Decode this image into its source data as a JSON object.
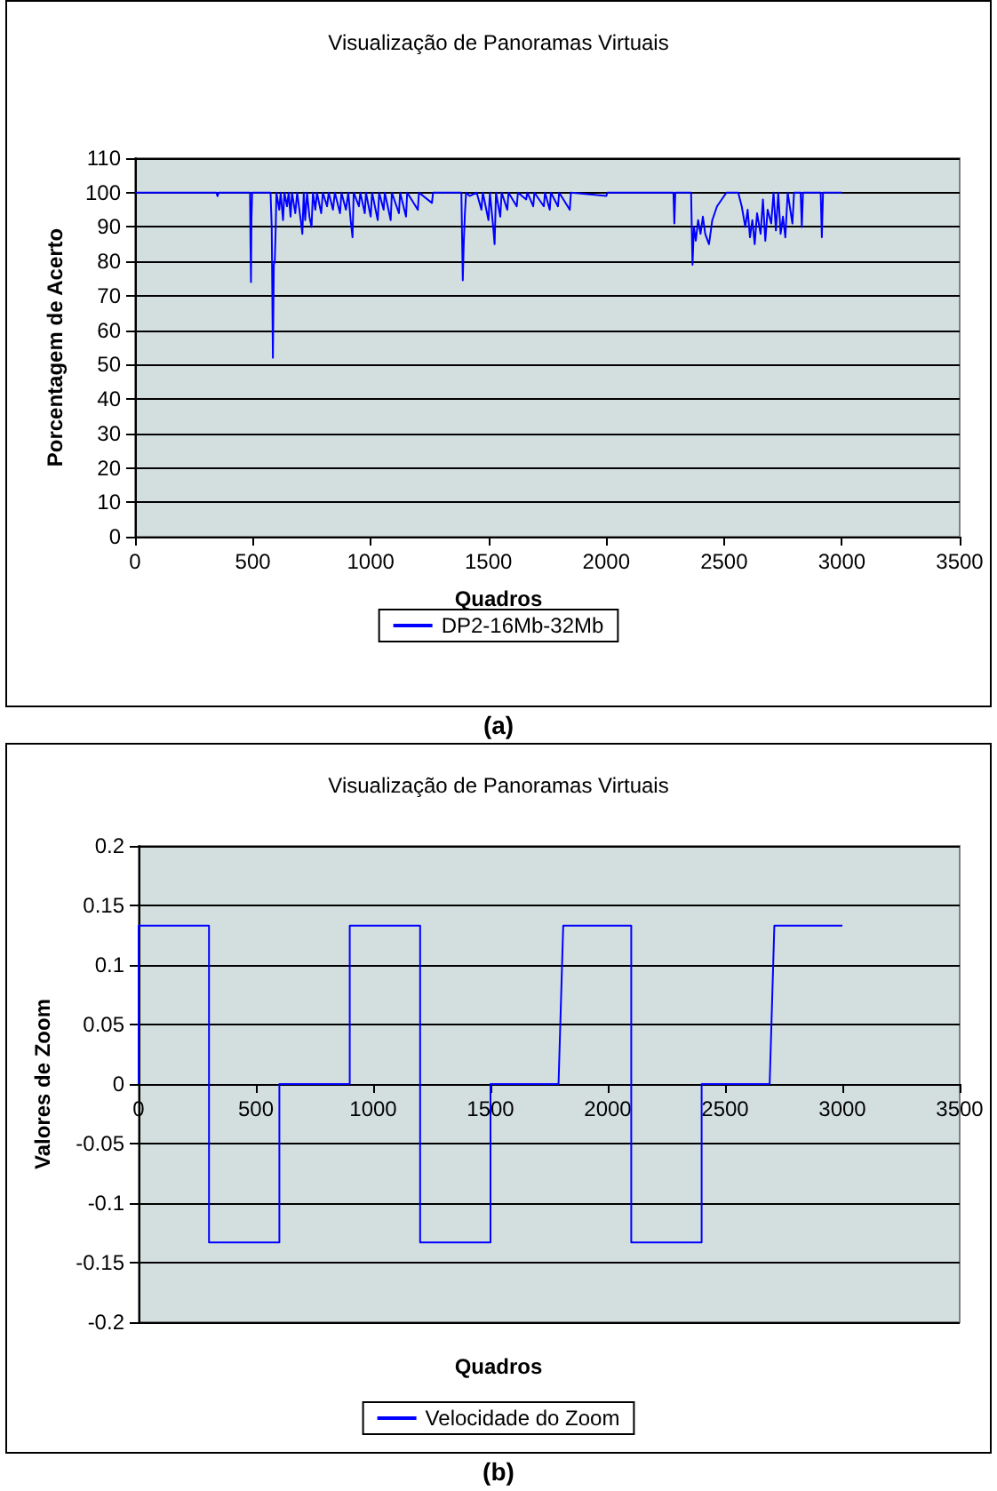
{
  "chart_data": [
    {
      "type": "line",
      "title": "Visualização de Panoramas Virtuais",
      "xlabel": "Quadros",
      "ylabel": "Porcentagem de Acerto",
      "xlim": [
        0,
        3500
      ],
      "xticks": [
        0,
        500,
        1000,
        1500,
        2000,
        2500,
        3000,
        3500
      ],
      "ylim": [
        0,
        110
      ],
      "yticks": [
        0,
        10,
        20,
        30,
        40,
        50,
        60,
        70,
        80,
        90,
        100,
        110
      ],
      "grid": "y",
      "legend": "bottom",
      "annotations": [
        "(a)"
      ],
      "series": [
        {
          "name": "DP2-16Mb-32Mb",
          "color": "#0000ff",
          "x": [
            0,
            345,
            350,
            355,
            488,
            490,
            492,
            494,
            497,
            575,
            580,
            585,
            589,
            593,
            597,
            600,
            612,
            618,
            628,
            634,
            645,
            652,
            660,
            666,
            680,
            688,
            705,
            710,
            716,
            722,
            730,
            740,
            749,
            755,
            765,
            772,
            790,
            797,
            815,
            822,
            840,
            848,
            870,
            876,
            895,
            905,
            915,
            923,
            928,
            950,
            956,
            975,
            980,
            1000,
            1006,
            1030,
            1036,
            1055,
            1060,
            1085,
            1090,
            1120,
            1125,
            1150,
            1155,
            1200,
            1205,
            1260,
            1265,
            1385,
            1388,
            1391,
            1395,
            1400,
            1405,
            1420,
            1450,
            1470,
            1476,
            1500,
            1506,
            1520,
            1526,
            1532,
            1550,
            1556,
            1580,
            1585,
            1620,
            1625,
            1660,
            1665,
            1690,
            1695,
            1735,
            1740,
            1760,
            1765,
            1795,
            1800,
            1845,
            1850,
            2000,
            2005,
            2285,
            2289,
            2293,
            2360,
            2366,
            2372,
            2380,
            2390,
            2400,
            2410,
            2420,
            2436,
            2450,
            2470,
            2490,
            2510,
            2560,
            2575,
            2590,
            2600,
            2610,
            2620,
            2630,
            2640,
            2655,
            2665,
            2675,
            2685,
            2700,
            2710,
            2720,
            2730,
            2740,
            2750,
            2760,
            2770,
            2790,
            2797,
            2825,
            2830,
            2835,
            2910,
            2915,
            2920,
            3000
          ],
          "values": [
            100,
            100,
            99,
            100,
            100,
            85,
            74,
            92,
            100,
            100,
            90,
            52,
            79,
            80,
            90,
            100,
            95,
            100,
            92,
            100,
            96,
            100,
            93,
            100,
            94,
            100,
            91,
            88,
            100,
            92,
            100,
            93,
            90,
            100,
            95,
            100,
            94,
            100,
            96,
            100,
            95,
            100,
            94,
            100,
            95,
            100,
            92,
            87,
            100,
            96,
            100,
            94,
            100,
            93,
            100,
            92,
            100,
            95,
            100,
            92,
            100,
            94,
            100,
            93,
            100,
            95,
            100,
            97,
            100,
            100,
            87,
            74.5,
            85,
            94,
            100,
            99,
            100,
            95,
            100,
            92,
            100,
            90,
            85,
            100,
            93,
            100,
            95,
            100,
            96,
            100,
            98,
            100,
            96,
            100,
            96,
            100,
            95,
            100,
            96,
            100,
            95,
            100,
            99,
            100,
            100,
            91,
            100,
            100,
            79,
            90,
            86,
            92,
            88,
            93,
            88,
            85,
            92,
            96,
            98,
            100,
            100,
            96,
            90,
            95,
            87,
            92,
            85,
            94,
            88,
            98,
            86,
            95,
            91,
            100,
            89,
            100,
            88,
            93,
            87,
            100,
            91,
            100,
            100,
            90,
            100,
            100,
            87,
            100,
            100
          ]
        }
      ]
    },
    {
      "type": "line",
      "title": "Visualização de Panoramas Virtuais",
      "xlabel": "Quadros",
      "ylabel": "Valores de Zoom",
      "xlim": [
        0,
        3500
      ],
      "xticks": [
        0,
        500,
        1000,
        1500,
        2000,
        2500,
        3000,
        3500
      ],
      "ylim": [
        -0.2,
        0.2
      ],
      "yticks": [
        -0.2,
        -0.15,
        -0.1,
        -0.05,
        0,
        0.05,
        0.1,
        0.15,
        0.2
      ],
      "grid": "y",
      "legend": "bottom",
      "annotations": [
        "(b)"
      ],
      "series": [
        {
          "name": "Velocidade do Zoom",
          "color": "#0000ff",
          "x": [
            0,
            0,
            300,
            300,
            600,
            600,
            900,
            900,
            1200,
            1200,
            1500,
            1500,
            1790,
            1810,
            2100,
            2100,
            2400,
            2400,
            2690,
            2710,
            3000
          ],
          "values": [
            0,
            0.133,
            0.133,
            -0.133,
            -0.133,
            0,
            0,
            0.133,
            0.133,
            -0.133,
            -0.133,
            0,
            0,
            0.133,
            0.133,
            -0.133,
            -0.133,
            0,
            0,
            0.133,
            0.133
          ]
        }
      ]
    }
  ]
}
